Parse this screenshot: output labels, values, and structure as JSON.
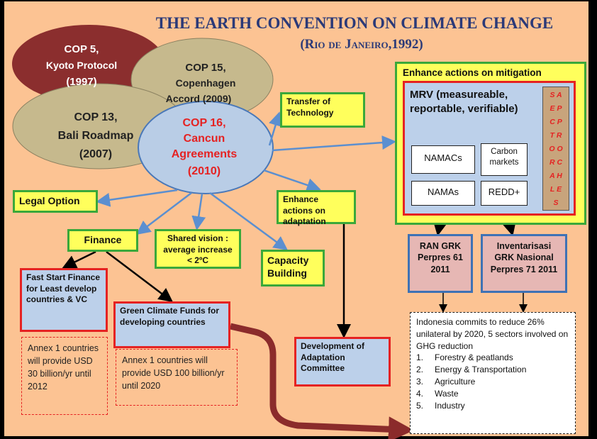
{
  "header": {
    "title": "THE EARTH CONVENTION ON CLIMATE CHANGE",
    "subtitle": "(Rio de Janeiro,1992)"
  },
  "cops": [
    {
      "lines": [
        "COP 5,",
        "Kyoto Protocol",
        "(1997)"
      ]
    },
    {
      "lines": [
        "COP 15,",
        "Copenhagen",
        "Accord (2009)"
      ]
    },
    {
      "lines": [
        "COP 13,",
        "Bali Roadmap",
        "(2007)"
      ]
    },
    {
      "lines": [
        "COP 16,",
        "Cancun",
        "Agreements",
        "(2010)"
      ]
    }
  ],
  "boxes": {
    "legal_option": "Legal Option",
    "finance": "Finance",
    "shared_vision": "Shared vision : average increase < 2ºC",
    "capacity_building": "Capacity Building",
    "transfer_technology": "Transfer of Technology",
    "adaptation": "Enhance actions on adaptation",
    "fast_start": "Fast Start Finance for Least develop countries & VC",
    "green_climate": "Green Climate Funds for developing countries",
    "adaptation_committee": "Development of Adaptation Committee",
    "annex_30": "Annex 1 countries will provide USD 30 billion/yr until 2012",
    "annex_100": "Annex 1 countries will provide USD 100 billion/yr until 2020",
    "ran_grk": "RAN GRK Perpres 61 2011",
    "inventarisasi": "Inventarisasi GRK Nasional Perpres 71 2011"
  },
  "mitigation": {
    "title": "Enhance actions on mitigation",
    "mrv": "MRV (measureable, reportable, verifiable)",
    "namacs": "NAMACs",
    "carbon_markets": "Carbon markets",
    "namas": "NAMAs",
    "redd": "REDD+",
    "sectoral": [
      "S A",
      "E P",
      "C P",
      "T R",
      "O O",
      "R C",
      "A H",
      "L E",
      "S"
    ]
  },
  "indonesia": {
    "text": "Indonesia commits to reduce 26% unilateral by 2020, 5 sectors involved on GHG reduction",
    "items": [
      {
        "number": "1.",
        "label": "Forestry & peatlands"
      },
      {
        "number": "2.",
        "label": "Energy & Transportation"
      },
      {
        "number": "3.",
        "label": "Agriculture"
      },
      {
        "number": "4.",
        "label": "Waste"
      },
      {
        "number": "5.",
        "label": "Industry"
      }
    ]
  }
}
